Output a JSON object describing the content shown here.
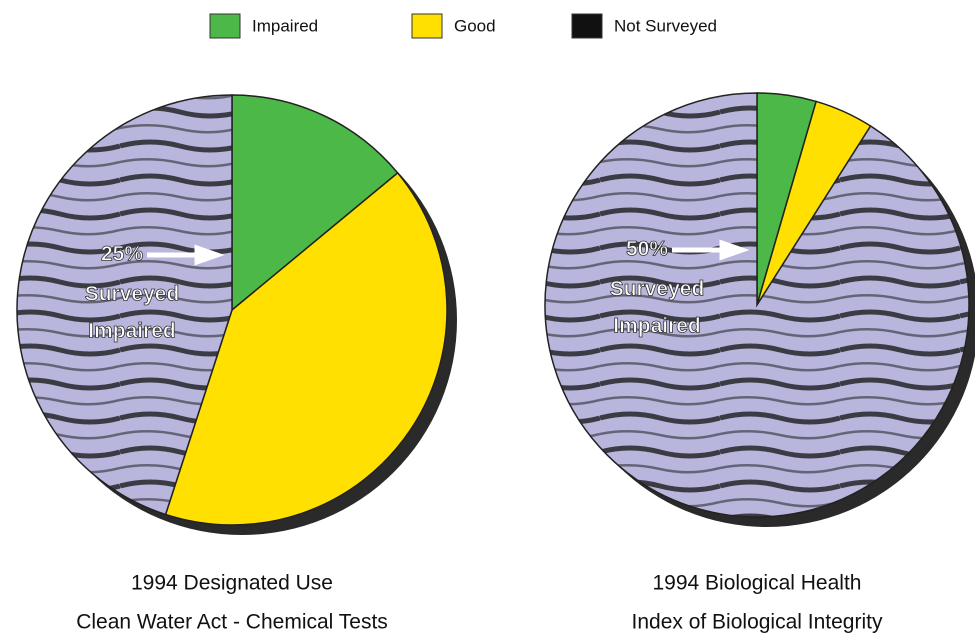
{
  "chart_data": [
    {
      "type": "pie",
      "title": "1994 Designated Use",
      "subtitle": "Clean Water Act - Chemical Tests",
      "categories": [
        "Impaired",
        "Good",
        "Not Surveyed"
      ],
      "values": [
        14,
        41,
        45
      ],
      "colors": [
        "#4cb848",
        "#ffe000",
        "#111111"
      ],
      "annotation": [
        "25%",
        "Surveyed",
        "Impaired"
      ]
    },
    {
      "type": "pie",
      "title": "1994 Biological Health",
      "subtitle": "Index of Biological Integrity",
      "categories": [
        "Impaired",
        "Good",
        "Not Surveyed"
      ],
      "values": [
        4.5,
        4.5,
        91
      ],
      "colors": [
        "#4cb848",
        "#ffe000",
        "#111111"
      ],
      "annotation": [
        "50%",
        "Surveyed",
        "Impaired"
      ]
    }
  ]
}
